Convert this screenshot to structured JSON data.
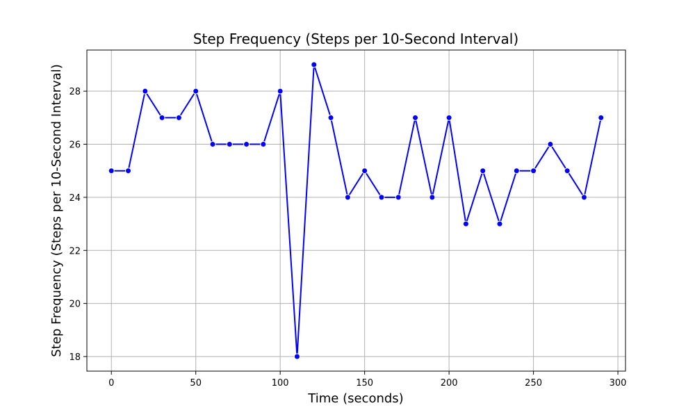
{
  "chart_data": {
    "type": "line",
    "title": "Step Frequency (Steps per 10-Second Interval)",
    "xlabel": "Time (seconds)",
    "ylabel": "Step Frequency (Steps per 10-Second Interval)",
    "x": [
      0,
      10,
      20,
      30,
      40,
      50,
      60,
      70,
      80,
      90,
      100,
      110,
      120,
      130,
      140,
      150,
      160,
      170,
      180,
      190,
      200,
      210,
      220,
      230,
      240,
      250,
      260,
      270,
      280,
      290
    ],
    "series": [
      {
        "values": [
          25,
          25,
          28,
          27,
          27,
          28,
          26,
          26,
          26,
          26,
          28,
          18,
          29,
          27,
          24,
          25,
          24,
          24,
          27,
          24,
          27,
          23,
          25,
          23,
          25,
          25,
          26,
          25,
          24,
          27
        ],
        "color": "#0000ff",
        "marker": "circle"
      }
    ],
    "xlim": [
      -14.5,
      304.5
    ],
    "ylim": [
      17.45,
      29.55
    ],
    "xticks": [
      0,
      50,
      100,
      150,
      200,
      250,
      300
    ],
    "yticks": [
      18,
      20,
      22,
      24,
      26,
      28
    ],
    "xtick_labels": [
      "0",
      "50",
      "100",
      "150",
      "200",
      "250",
      "300"
    ],
    "ytick_labels": [
      "18",
      "20",
      "22",
      "24",
      "26",
      "28"
    ],
    "grid": true,
    "grid_color": "#b0b0b0"
  }
}
